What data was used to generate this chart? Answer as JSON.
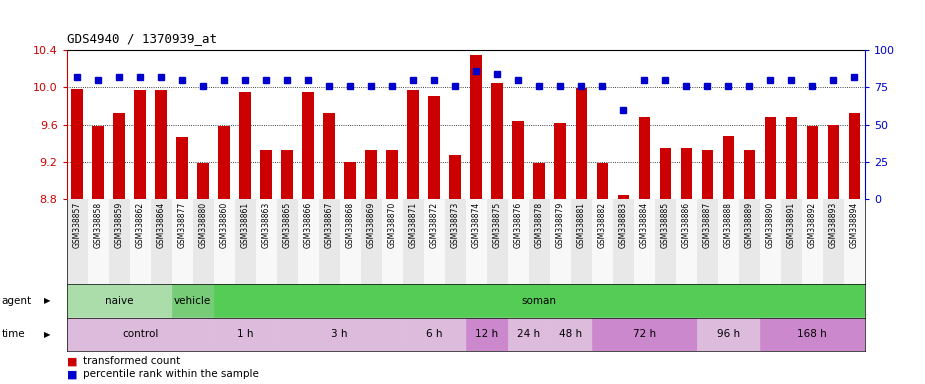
{
  "title": "GDS4940 / 1370939_at",
  "samples": [
    "GSM338857",
    "GSM338858",
    "GSM338859",
    "GSM338862",
    "GSM338864",
    "GSM338877",
    "GSM338880",
    "GSM338860",
    "GSM338861",
    "GSM338863",
    "GSM338865",
    "GSM338866",
    "GSM338867",
    "GSM338868",
    "GSM338869",
    "GSM338870",
    "GSM338871",
    "GSM338872",
    "GSM338873",
    "GSM338874",
    "GSM338875",
    "GSM338876",
    "GSM338878",
    "GSM338879",
    "GSM338881",
    "GSM338882",
    "GSM338883",
    "GSM338884",
    "GSM338885",
    "GSM338886",
    "GSM338887",
    "GSM338888",
    "GSM338889",
    "GSM338890",
    "GSM338891",
    "GSM338892",
    "GSM338893",
    "GSM338894"
  ],
  "bar_values": [
    9.98,
    9.59,
    9.72,
    9.97,
    9.97,
    9.47,
    9.19,
    9.58,
    9.95,
    9.33,
    9.33,
    9.95,
    9.72,
    9.2,
    9.33,
    9.33,
    9.97,
    9.91,
    9.27,
    10.35,
    10.05,
    9.64,
    9.19,
    9.62,
    9.99,
    9.19,
    8.85,
    9.68,
    9.35,
    9.35,
    9.33,
    9.48,
    9.33,
    9.68,
    9.68,
    9.59,
    9.6,
    9.72
  ],
  "percentile_values": [
    82,
    80,
    82,
    82,
    82,
    80,
    76,
    80,
    80,
    80,
    80,
    80,
    76,
    76,
    76,
    76,
    80,
    80,
    76,
    86,
    84,
    80,
    76,
    76,
    76,
    76,
    60,
    80,
    80,
    76,
    76,
    76,
    76,
    80,
    80,
    76,
    80,
    82
  ],
  "bar_color": "#cc0000",
  "percentile_color": "#0000cc",
  "ylim_left": [
    8.8,
    10.4
  ],
  "ylim_right": [
    0,
    100
  ],
  "yticks_left": [
    8.8,
    9.2,
    9.6,
    10.0,
    10.4
  ],
  "yticks_right": [
    0,
    25,
    50,
    75,
    100
  ],
  "grid_values": [
    9.2,
    9.6,
    10.0
  ],
  "agent_groups_naive": {
    "label": "naive",
    "start": 0,
    "end": 5,
    "color": "#aaddaa"
  },
  "agent_groups_vehicle": {
    "label": "vehicle",
    "start": 5,
    "end": 7,
    "color": "#77cc77"
  },
  "agent_groups_soman": {
    "label": "soman",
    "start": 7,
    "end": 38,
    "color": "#55cc55"
  },
  "time_groups": [
    {
      "label": "control",
      "start": 0,
      "end": 7,
      "color": "#ddbbdd"
    },
    {
      "label": "1 h",
      "start": 7,
      "end": 10,
      "color": "#ddbbdd"
    },
    {
      "label": "3 h",
      "start": 10,
      "end": 16,
      "color": "#ddbbdd"
    },
    {
      "label": "6 h",
      "start": 16,
      "end": 19,
      "color": "#ddbbdd"
    },
    {
      "label": "12 h",
      "start": 19,
      "end": 21,
      "color": "#cc88cc"
    },
    {
      "label": "24 h",
      "start": 21,
      "end": 23,
      "color": "#ddbbdd"
    },
    {
      "label": "48 h",
      "start": 23,
      "end": 25,
      "color": "#ddbbdd"
    },
    {
      "label": "72 h",
      "start": 25,
      "end": 30,
      "color": "#cc88cc"
    },
    {
      "label": "96 h",
      "start": 30,
      "end": 33,
      "color": "#ddbbdd"
    },
    {
      "label": "168 h",
      "start": 33,
      "end": 38,
      "color": "#cc88cc"
    }
  ],
  "cell_colors": [
    "#e8e8e8",
    "#f8f8f8"
  ],
  "bar_color_red": "#cc0000",
  "percentile_color_blue": "#0000cc"
}
